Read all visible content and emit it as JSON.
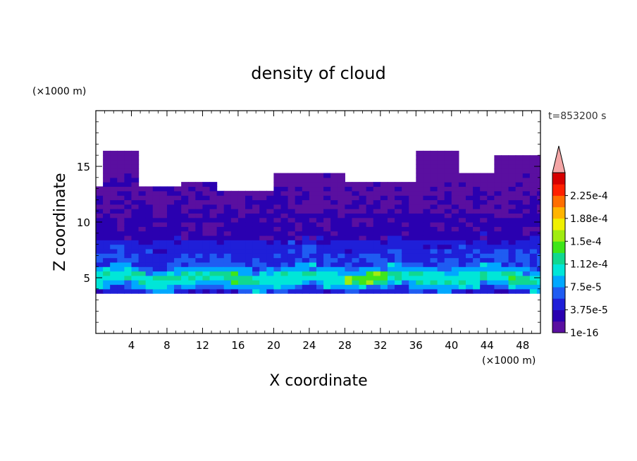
{
  "chart_data": {
    "type": "heatmap",
    "title": "density of cloud",
    "xlabel": "X coordinate",
    "ylabel": "Z coordinate",
    "x_unit": "(×1000 m)",
    "y_unit": "(×1000 m)",
    "time_label": "t=853200 s",
    "xlim": [
      0,
      50
    ],
    "ylim": [
      0,
      20
    ],
    "x_ticks": [
      4,
      8,
      12,
      16,
      20,
      24,
      28,
      32,
      36,
      40,
      44,
      48
    ],
    "y_ticks": [
      5,
      10,
      15
    ],
    "colorbar": {
      "labels": [
        "1e-16",
        "3.75e-5",
        "7.5e-5",
        "1.12e-4",
        "1.5e-4",
        "1.88e-4",
        "2.25e-4"
      ],
      "colors": [
        "#5a0fa0",
        "#2a00b0",
        "#1f1fd8",
        "#1f5cf2",
        "#00a8ff",
        "#00e6d8",
        "#10d890",
        "#3ee61a",
        "#a0ec10",
        "#f0f000",
        "#ffb400",
        "#ff6e00",
        "#ff2000",
        "#d60000"
      ],
      "over_color": "#f4a6a6"
    },
    "cloud_layer": {
      "base_km": 3.6,
      "dense_core_km": [
        4.6,
        5.6
      ],
      "upper_edge_km": [
        12,
        16.5
      ],
      "x_extent_km": [
        0,
        50
      ],
      "peak_density_near_x_km": [
        28,
        33
      ],
      "peak_density_level": "1.5e-4"
    }
  }
}
